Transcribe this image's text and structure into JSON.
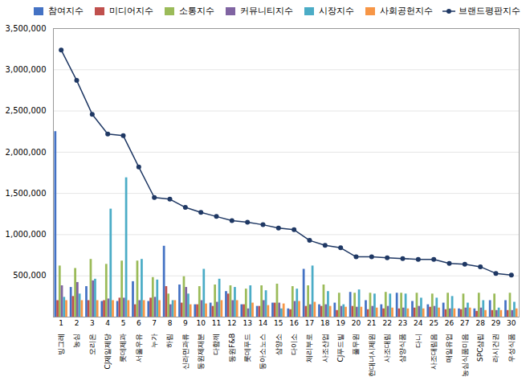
{
  "chart_data": {
    "type": "bar",
    "categories": [
      "빙그레",
      "농심",
      "오리온",
      "CJ제일제당",
      "롯데제과",
      "서울우유",
      "누가",
      "하림",
      "신라면과류",
      "동원제재분",
      "다함께",
      "동원F&B",
      "롯데푸드",
      "동아소노스",
      "삼양소",
      "다이소",
      "체리부로",
      "사조산업",
      "CJ푸드빌",
      "풀무원",
      "현대녀시제원",
      "사조대림",
      "삼양식품",
      "다니",
      "사조대림음",
      "매일유업",
      "농심식품미음",
      "SPC삼립",
      "라시건권",
      "우성식품"
    ],
    "annotations": [
      "1",
      "2",
      "3",
      "4",
      "5",
      "6",
      "7",
      "8",
      "9",
      "10",
      "11",
      "12",
      "13",
      "14",
      "15",
      "16",
      "17",
      "18",
      "19",
      "20",
      "21",
      "22",
      "23",
      "24",
      "25",
      "26",
      "27",
      "28",
      "29",
      "30"
    ],
    "series": [
      {
        "name": "참여지수",
        "type": "bar",
        "color": "#4472C4",
        "values": [
          2250000,
          360000,
          370000,
          190000,
          190000,
          430000,
          190000,
          860000,
          390000,
          150000,
          170000,
          310000,
          150000,
          130000,
          170000,
          100000,
          580000,
          150000,
          170000,
          300000,
          200000,
          150000,
          290000,
          190000,
          150000,
          170000,
          100000,
          100000,
          200000,
          200000
        ]
      },
      {
        "name": "미디어지수",
        "type": "bar",
        "color": "#C0504D",
        "values": [
          200000,
          250000,
          200000,
          200000,
          230000,
          150000,
          230000,
          370000,
          170000,
          150000,
          130000,
          280000,
          150000,
          130000,
          170000,
          90000,
          130000,
          130000,
          80000,
          130000,
          90000,
          100000,
          100000,
          110000,
          120000,
          90000,
          90000,
          70000,
          80000,
          80000
        ]
      },
      {
        "name": "소통지수",
        "type": "bar",
        "color": "#9BBB59",
        "values": [
          620000,
          590000,
          700000,
          640000,
          680000,
          680000,
          480000,
          280000,
          490000,
          370000,
          390000,
          380000,
          340000,
          380000,
          400000,
          370000,
          380000,
          390000,
          290000,
          290000,
          290000,
          300000,
          290000,
          290000,
          280000,
          290000,
          280000,
          290000,
          280000,
          290000
        ]
      },
      {
        "name": "커뮤니티지수",
        "type": "bar",
        "color": "#8064A2",
        "values": [
          380000,
          420000,
          440000,
          220000,
          230000,
          200000,
          240000,
          150000,
          360000,
          200000,
          180000,
          200000,
          100000,
          200000,
          170000,
          190000,
          150000,
          150000,
          130000,
          120000,
          130000,
          130000,
          110000,
          130000,
          130000,
          100000,
          110000,
          110000,
          80000,
          80000
        ]
      },
      {
        "name": "시장지수",
        "type": "bar",
        "color": "#4BACC6",
        "values": [
          240000,
          280000,
          460000,
          1310000,
          1690000,
          700000,
          450000,
          200000,
          280000,
          580000,
          460000,
          360000,
          380000,
          320000,
          100000,
          340000,
          620000,
          310000,
          150000,
          330000,
          280000,
          280000,
          280000,
          230000,
          230000,
          250000,
          170000,
          200000,
          110000,
          180000
        ]
      },
      {
        "name": "사회공헌지수",
        "type": "bar",
        "color": "#F79646",
        "values": [
          200000,
          200000,
          200000,
          200000,
          200000,
          200000,
          200000,
          200000,
          150000,
          160000,
          200000,
          200000,
          170000,
          140000,
          160000,
          190000,
          180000,
          130000,
          120000,
          120000,
          110000,
          110000,
          100000,
          100000,
          110000,
          100000,
          110000,
          80000,
          80000,
          100000
        ]
      },
      {
        "name": "브랜드평판지수",
        "type": "line",
        "color": "#1F3864",
        "marker": "circle",
        "values": [
          3240000,
          2870000,
          2460000,
          2220000,
          2200000,
          1820000,
          1450000,
          1430000,
          1330000,
          1270000,
          1220000,
          1170000,
          1150000,
          1120000,
          1080000,
          1060000,
          930000,
          870000,
          840000,
          730000,
          730000,
          720000,
          710000,
          700000,
          700000,
          650000,
          640000,
          610000,
          530000,
          510000
        ]
      }
    ],
    "ylim": [
      0,
      3500000
    ],
    "yticks": [
      {
        "value": 500000,
        "label": "500,000"
      },
      {
        "value": 1000000,
        "label": "1,000,000"
      },
      {
        "value": 1500000,
        "label": "1,500,000"
      },
      {
        "value": 2000000,
        "label": "2,000,000"
      },
      {
        "value": 2500000,
        "label": "2,500,000"
      },
      {
        "value": 3000000,
        "label": "3,000,000"
      },
      {
        "value": 3500000,
        "label": "3,500,000"
      }
    ],
    "grid": true,
    "legend": "upper right"
  }
}
